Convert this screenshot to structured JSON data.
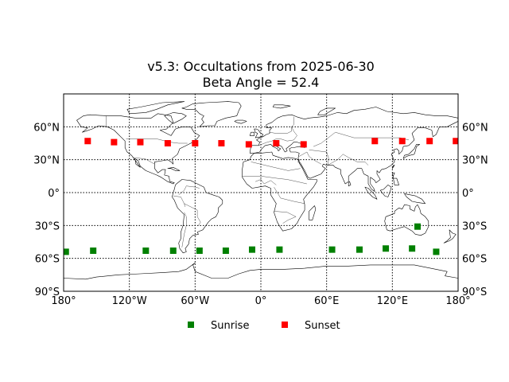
{
  "title": {
    "line1": "v5.3: Occultations from 2025-06-30",
    "line2": "Beta Angle = 52.4"
  },
  "colors": {
    "sunrise": "#008000",
    "sunset": "#ff0000"
  },
  "chart_data": {
    "type": "scatter",
    "projection": "equirectangular",
    "xlim": [
      -180,
      180
    ],
    "ylim": [
      -90,
      90
    ],
    "grid": true,
    "legend_placement": "bottom-center",
    "x_ticks": [
      {
        "value": -180,
        "label": "180°"
      },
      {
        "value": -120,
        "label": "120°W"
      },
      {
        "value": -60,
        "label": "60°W"
      },
      {
        "value": 0,
        "label": "0°"
      },
      {
        "value": 60,
        "label": "60°E"
      },
      {
        "value": 120,
        "label": "120°E"
      },
      {
        "value": 180,
        "label": "180°"
      }
    ],
    "y_ticks": [
      {
        "value": 60,
        "label": "60°N"
      },
      {
        "value": 30,
        "label": "30°N"
      },
      {
        "value": 0,
        "label": "0°"
      },
      {
        "value": -30,
        "label": "30°S"
      },
      {
        "value": -60,
        "label": "60°S"
      },
      {
        "value": -90,
        "label": "90°S"
      }
    ],
    "series": [
      {
        "name": "Sunrise",
        "color": "#008000",
        "marker": "square",
        "points": [
          {
            "lon": -178,
            "lat": -54
          },
          {
            "lon": -153,
            "lat": -53
          },
          {
            "lon": -105,
            "lat": -53
          },
          {
            "lon": -80,
            "lat": -53
          },
          {
            "lon": -56,
            "lat": -53
          },
          {
            "lon": -32,
            "lat": -53
          },
          {
            "lon": -8,
            "lat": -52
          },
          {
            "lon": 17,
            "lat": -52
          },
          {
            "lon": 65,
            "lat": -52
          },
          {
            "lon": 90,
            "lat": -52
          },
          {
            "lon": 114,
            "lat": -51
          },
          {
            "lon": 138,
            "lat": -51
          },
          {
            "lon": 160,
            "lat": -54
          },
          {
            "lon": 143,
            "lat": -31
          }
        ]
      },
      {
        "name": "Sunset",
        "color": "#ff0000",
        "marker": "square",
        "points": [
          {
            "lon": -158,
            "lat": 47
          },
          {
            "lon": -134,
            "lat": 46
          },
          {
            "lon": -110,
            "lat": 46
          },
          {
            "lon": -85,
            "lat": 45
          },
          {
            "lon": -60,
            "lat": 45
          },
          {
            "lon": -36,
            "lat": 45
          },
          {
            "lon": -11,
            "lat": 44
          },
          {
            "lon": 14,
            "lat": 45
          },
          {
            "lon": 39,
            "lat": 44
          },
          {
            "lon": 104,
            "lat": 47
          },
          {
            "lon": 129,
            "lat": 47
          },
          {
            "lon": 154,
            "lat": 47
          },
          {
            "lon": 178,
            "lat": 47
          }
        ]
      }
    ]
  }
}
